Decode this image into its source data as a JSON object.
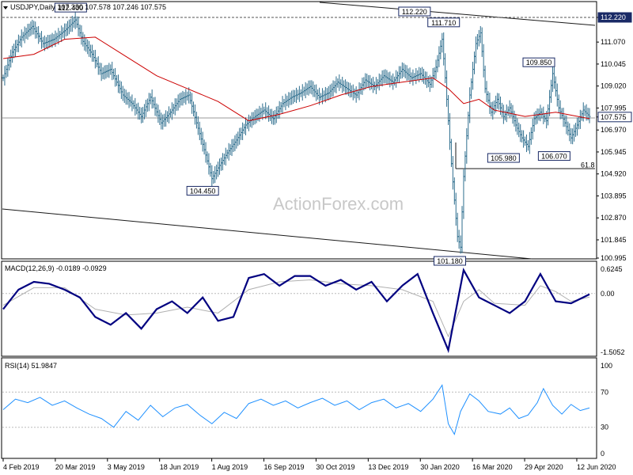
{
  "header": {
    "symbol_line": "USDJPY,Daily  107.330 107.578 107.246 107.575",
    "macd_title": "MACD(12,26,9) -0.0189 -0.0929",
    "rsi_title": "RSI(14) 51.9847",
    "watermark": "ActionForex.com"
  },
  "colors": {
    "up_bar": "#2e6e8e",
    "down_bar": "#2e6e8e",
    "ma_line": "#cc0000",
    "macd_line": "#000080",
    "signal_line": "#b0b0b0",
    "rsi_line": "#1e90ff",
    "channel_line": "#1a1a1a",
    "price_label_bg": "#1a2a66",
    "label_box": "#1a2a66"
  },
  "chart_data": [
    {
      "type": "line",
      "panel": "price",
      "price_axis": [
        "112.220",
        "111.070",
        "110.045",
        "109.020",
        "107.995",
        "107.575",
        "106.970",
        "105.945",
        "104.920",
        "103.895",
        "102.870",
        "101.845",
        "100.995"
      ],
      "y_range": [
        100.995,
        112.22
      ],
      "current_price": "107.575",
      "series": [
        {
          "name": "close",
          "points": [
            [
              0,
              109.4
            ],
            [
              6,
              110.6
            ],
            [
              12,
              111.3
            ],
            [
              19,
              111.8
            ],
            [
              26,
              111.0
            ],
            [
              33,
              111.2
            ],
            [
              40,
              111.6
            ],
            [
              47,
              112.1
            ],
            [
              52,
              111.1
            ],
            [
              58,
              110.5
            ],
            [
              64,
              109.6
            ],
            [
              70,
              109.8
            ],
            [
              78,
              108.6
            ],
            [
              84,
              108.2
            ],
            [
              90,
              107.6
            ],
            [
              96,
              108.5
            ],
            [
              103,
              107.3
            ],
            [
              109,
              107.8
            ],
            [
              115,
              108.4
            ],
            [
              121,
              108.6
            ],
            [
              126,
              107.3
            ],
            [
              132,
              105.8
            ],
            [
              136,
              104.7
            ],
            [
              140,
              105.2
            ],
            [
              146,
              105.9
            ],
            [
              152,
              106.5
            ],
            [
              158,
              107.2
            ],
            [
              164,
              107.6
            ],
            [
              170,
              107.9
            ],
            [
              176,
              107.5
            ],
            [
              182,
              108.2
            ],
            [
              188,
              108.5
            ],
            [
              194,
              108.7
            ],
            [
              200,
              109.0
            ],
            [
              206,
              108.5
            ],
            [
              212,
              108.7
            ],
            [
              218,
              109.2
            ],
            [
              224,
              108.9
            ],
            [
              230,
              108.6
            ],
            [
              236,
              109.3
            ],
            [
              242,
              109.0
            ],
            [
              248,
              109.5
            ],
            [
              254,
              109.2
            ],
            [
              260,
              109.8
            ],
            [
              266,
              109.4
            ],
            [
              272,
              109.6
            ],
            [
              278,
              109.1
            ],
            [
              282,
              109.9
            ],
            [
              286,
              111.2
            ],
            [
              288,
              109.4
            ],
            [
              292,
              105.4
            ],
            [
              296,
              102.0
            ],
            [
              298,
              101.5
            ],
            [
              300,
              104.8
            ],
            [
              304,
              108.6
            ],
            [
              308,
              111.0
            ],
            [
              311,
              111.5
            ],
            [
              314,
              108.9
            ],
            [
              318,
              107.8
            ],
            [
              322,
              108.4
            ],
            [
              326,
              107.6
            ],
            [
              330,
              108.0
            ],
            [
              334,
              107.2
            ],
            [
              338,
              106.6
            ],
            [
              342,
              106.2
            ],
            [
              346,
              107.5
            ],
            [
              350,
              107.8
            ],
            [
              354,
              107.4
            ],
            [
              358,
              109.6
            ],
            [
              362,
              108.0
            ],
            [
              366,
              107.3
            ],
            [
              370,
              106.6
            ],
            [
              374,
              107.2
            ],
            [
              378,
              107.9
            ],
            [
              382,
              107.6
            ]
          ]
        },
        {
          "name": "ma",
          "points": [
            [
              0,
              110.3
            ],
            [
              20,
              110.5
            ],
            [
              40,
              111.2
            ],
            [
              60,
              111.3
            ],
            [
              80,
              110.4
            ],
            [
              100,
              109.5
            ],
            [
              120,
              108.9
            ],
            [
              140,
              108.3
            ],
            [
              160,
              107.4
            ],
            [
              180,
              107.7
            ],
            [
              200,
              108.1
            ],
            [
              220,
              108.6
            ],
            [
              240,
              109.0
            ],
            [
              260,
              109.2
            ],
            [
              280,
              109.4
            ],
            [
              290,
              108.9
            ],
            [
              300,
              108.2
            ],
            [
              310,
              108.4
            ],
            [
              320,
              107.9
            ],
            [
              340,
              107.6
            ],
            [
              360,
              107.8
            ],
            [
              382,
              107.5
            ]
          ]
        }
      ],
      "annotations": [
        {
          "text": "112.400",
          "bar": 44,
          "price": 112.4
        },
        {
          "text": "112.220",
          "bar": 268,
          "price": 112.22
        },
        {
          "text": "111.710",
          "bar": 287,
          "price": 111.71
        },
        {
          "text": "109.850",
          "bar": 349,
          "price": 109.85
        },
        {
          "text": "105.980",
          "bar": 326,
          "price": 105.98
        },
        {
          "text": "106.070",
          "bar": 359,
          "price": 106.07
        },
        {
          "text": "104.450",
          "bar": 130,
          "price": 104.45
        },
        {
          "text": "101.180",
          "bar": 291,
          "price": 101.18
        },
        {
          "text": "61.8",
          "bar": 376,
          "price": 105.15
        }
      ]
    },
    {
      "type": "line",
      "panel": "macd",
      "axis": [
        "0.6245",
        "0.00",
        "-1.5052"
      ],
      "y_range": [
        -1.5052,
        0.6245
      ],
      "series": [
        {
          "name": "macd",
          "points": [
            [
              0,
              -0.4
            ],
            [
              10,
              0.1
            ],
            [
              20,
              0.3
            ],
            [
              30,
              0.25
            ],
            [
              40,
              0.1
            ],
            [
              50,
              -0.1
            ],
            [
              60,
              -0.6
            ],
            [
              70,
              -0.8
            ],
            [
              80,
              -0.5
            ],
            [
              90,
              -0.9
            ],
            [
              100,
              -0.4
            ],
            [
              110,
              -0.2
            ],
            [
              120,
              -0.5
            ],
            [
              130,
              -0.1
            ],
            [
              140,
              -0.7
            ],
            [
              150,
              -0.6
            ],
            [
              160,
              0.4
            ],
            [
              170,
              0.5
            ],
            [
              180,
              0.2
            ],
            [
              190,
              0.45
            ],
            [
              200,
              0.45
            ],
            [
              210,
              0.2
            ],
            [
              220,
              0.35
            ],
            [
              230,
              0.1
            ],
            [
              240,
              0.3
            ],
            [
              250,
              -0.2
            ],
            [
              260,
              0.2
            ],
            [
              270,
              0.5
            ],
            [
              280,
              -0.5
            ],
            [
              290,
              -1.45
            ],
            [
              300,
              0.6
            ],
            [
              310,
              -0.1
            ],
            [
              320,
              -0.3
            ],
            [
              330,
              -0.5
            ],
            [
              340,
              -0.2
            ],
            [
              350,
              0.5
            ],
            [
              360,
              -0.2
            ],
            [
              370,
              -0.25
            ],
            [
              382,
              -0.02
            ]
          ]
        },
        {
          "name": "signal",
          "points": [
            [
              0,
              -0.3
            ],
            [
              20,
              0.15
            ],
            [
              40,
              0.15
            ],
            [
              60,
              -0.4
            ],
            [
              80,
              -0.55
            ],
            [
              100,
              -0.5
            ],
            [
              120,
              -0.35
            ],
            [
              140,
              -0.5
            ],
            [
              160,
              0.1
            ],
            [
              180,
              0.3
            ],
            [
              200,
              0.35
            ],
            [
              220,
              0.25
            ],
            [
              240,
              0.2
            ],
            [
              260,
              0.1
            ],
            [
              280,
              -0.2
            ],
            [
              290,
              -1.1
            ],
            [
              300,
              -0.2
            ],
            [
              310,
              0.1
            ],
            [
              320,
              -0.25
            ],
            [
              340,
              -0.3
            ],
            [
              350,
              0.2
            ],
            [
              360,
              0.05
            ],
            [
              370,
              -0.2
            ],
            [
              382,
              -0.09
            ]
          ]
        }
      ]
    },
    {
      "type": "line",
      "panel": "rsi",
      "axis": [
        "100",
        "70",
        "30",
        "0"
      ],
      "y_range": [
        0,
        100
      ],
      "series": [
        {
          "name": "rsi",
          "points": [
            [
              0,
              50
            ],
            [
              8,
              62
            ],
            [
              16,
              58
            ],
            [
              24,
              64
            ],
            [
              32,
              55
            ],
            [
              40,
              60
            ],
            [
              48,
              52
            ],
            [
              56,
              45
            ],
            [
              64,
              40
            ],
            [
              72,
              30
            ],
            [
              80,
              48
            ],
            [
              88,
              38
            ],
            [
              96,
              55
            ],
            [
              104,
              42
            ],
            [
              112,
              52
            ],
            [
              120,
              56
            ],
            [
              128,
              44
            ],
            [
              136,
              34
            ],
            [
              144,
              47
            ],
            [
              152,
              40
            ],
            [
              160,
              57
            ],
            [
              168,
              62
            ],
            [
              176,
              55
            ],
            [
              184,
              60
            ],
            [
              192,
              52
            ],
            [
              200,
              58
            ],
            [
              208,
              63
            ],
            [
              216,
              55
            ],
            [
              224,
              60
            ],
            [
              232,
              50
            ],
            [
              240,
              58
            ],
            [
              248,
              62
            ],
            [
              256,
              52
            ],
            [
              264,
              57
            ],
            [
              272,
              48
            ],
            [
              280,
              62
            ],
            [
              286,
              78
            ],
            [
              290,
              34
            ],
            [
              294,
              22
            ],
            [
              298,
              48
            ],
            [
              304,
              68
            ],
            [
              310,
              60
            ],
            [
              316,
              48
            ],
            [
              324,
              45
            ],
            [
              330,
              52
            ],
            [
              336,
              40
            ],
            [
              342,
              44
            ],
            [
              348,
              58
            ],
            [
              352,
              74
            ],
            [
              358,
              55
            ],
            [
              364,
              45
            ],
            [
              370,
              56
            ],
            [
              376,
              49
            ],
            [
              382,
              52
            ]
          ]
        }
      ]
    }
  ],
  "x_axis": [
    "4 Feb 2019",
    "20 Mar 2019",
    "3 May 2019",
    "18 Jun 2019",
    "1 Aug 2019",
    "16 Sep 2019",
    "30 Oct 2019",
    "13 Dec 2019",
    "30 Jan 2020",
    "16 Mar 2020",
    "29 Apr 2020",
    "12 Jun 2020"
  ]
}
